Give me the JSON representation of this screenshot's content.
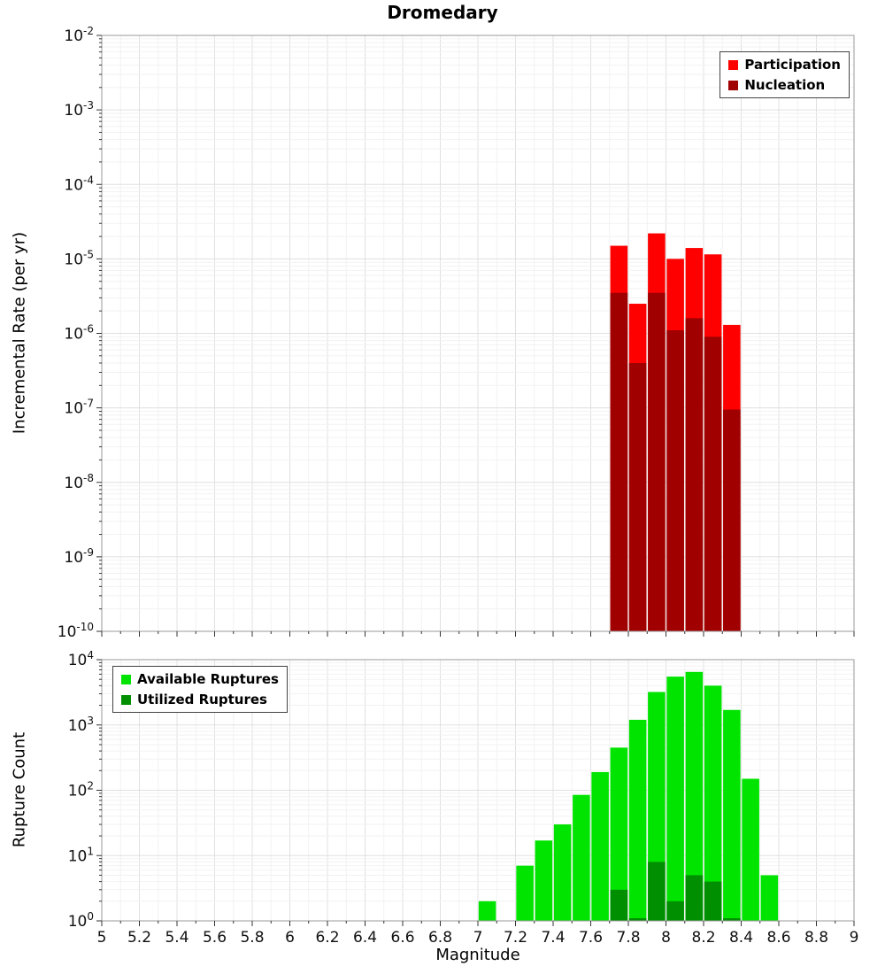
{
  "chart_data": [
    {
      "type": "bar",
      "title": "Dromedary",
      "ylabel": "Incremental Rate (per yr)",
      "xlabel": "",
      "y_scale": "log",
      "x_range": [
        5,
        9
      ],
      "y_range_exp": [
        -10,
        -2
      ],
      "bin_width": 0.1,
      "grid": true,
      "legend_position": "top-right",
      "categories": [
        7.75,
        7.85,
        7.95,
        8.05,
        8.15,
        8.25,
        8.35
      ],
      "series": [
        {
          "name": "Participation",
          "color": "#ff0000",
          "values": [
            1.5e-05,
            2.5e-06,
            2.2e-05,
            1e-05,
            1.4e-05,
            1.15e-05,
            1.3e-06
          ]
        },
        {
          "name": "Nucleation",
          "color": "#a00000",
          "values": [
            3.5e-06,
            4e-07,
            3.5e-06,
            1.1e-06,
            1.6e-06,
            9e-07,
            9.5e-08
          ]
        }
      ],
      "y_tick_exponents": [
        -2,
        -3,
        -4,
        -5,
        -6,
        -7,
        -8,
        -9,
        -10
      ],
      "x_tick_labels": []
    },
    {
      "type": "bar",
      "title": "",
      "ylabel": "Rupture Count",
      "xlabel": "Magnitude",
      "y_scale": "log",
      "x_range": [
        5,
        9
      ],
      "y_range_exp": [
        0,
        4
      ],
      "bin_width": 0.1,
      "grid": true,
      "legend_position": "top-left",
      "categories": [
        7.05,
        7.25,
        7.35,
        7.45,
        7.55,
        7.65,
        7.75,
        7.85,
        7.95,
        8.05,
        8.15,
        8.25,
        8.35,
        8.45,
        8.55
      ],
      "series": [
        {
          "name": "Available Ruptures",
          "color": "#00e400",
          "values": [
            2,
            7,
            17,
            30,
            85,
            190,
            450,
            1200,
            3200,
            5500,
            6500,
            4000,
            1700,
            150,
            5
          ]
        },
        {
          "name": "Utilized Ruptures",
          "color": "#008f00",
          "values": [
            0,
            0,
            0,
            0,
            0,
            0,
            3,
            1,
            8,
            2,
            5,
            4,
            1,
            0,
            0
          ]
        }
      ],
      "y_tick_exponents": [
        4,
        3,
        2,
        1,
        0
      ],
      "x_tick_labels": [
        "5",
        "5.2",
        "5.4",
        "5.6",
        "5.8",
        "6",
        "6.2",
        "6.4",
        "6.6",
        "6.8",
        "7",
        "7.2",
        "7.4",
        "7.6",
        "7.8",
        "8",
        "8.2",
        "8.4",
        "8.6",
        "8.8",
        "9"
      ]
    }
  ]
}
